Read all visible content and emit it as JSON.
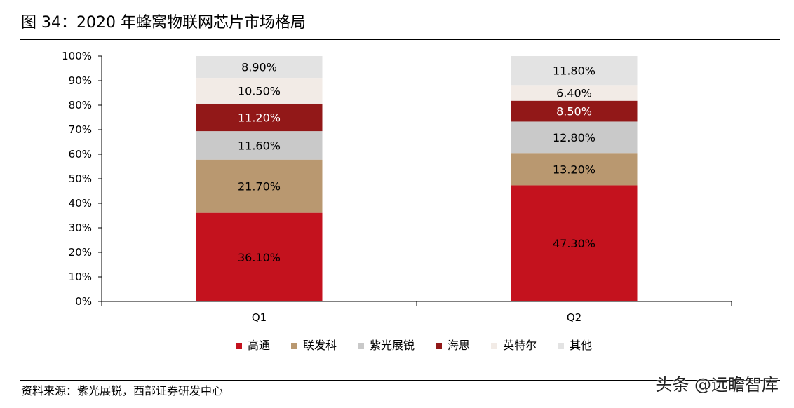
{
  "title": "图 34：2020 年蜂窝物联网芯片市场格局",
  "source": "资料来源：紫光展锐，西部证券研发中心",
  "watermark": "头条 @远瞻智库",
  "colors": {
    "高通": "#c4121e",
    "联发科": "#b99870",
    "紫光展锐": "#c9c9c9",
    "海思": "#921818",
    "英特尔": "#f2ebe6",
    "其他": "#e3e3e3"
  },
  "chart_data": {
    "type": "bar",
    "stacked": true,
    "categories": [
      "Q1",
      "Q2"
    ],
    "ylim": [
      0,
      100
    ],
    "yticks": [
      "0%",
      "10%",
      "20%",
      "30%",
      "40%",
      "50%",
      "60%",
      "70%",
      "80%",
      "90%",
      "100%"
    ],
    "grid": false,
    "legend_position": "bottom",
    "series": [
      {
        "name": "高通",
        "values": [
          36.1,
          47.3
        ],
        "labels": [
          "36.10%",
          "47.30%"
        ]
      },
      {
        "name": "联发科",
        "values": [
          21.7,
          13.2
        ],
        "labels": [
          "21.70%",
          "13.20%"
        ]
      },
      {
        "name": "紫光展锐",
        "values": [
          11.6,
          12.8
        ],
        "labels": [
          "11.60%",
          "12.80%"
        ]
      },
      {
        "name": "海思",
        "values": [
          11.2,
          8.5
        ],
        "labels": [
          "11.20%",
          "8.50%"
        ]
      },
      {
        "name": "英特尔",
        "values": [
          10.5,
          6.4
        ],
        "labels": [
          "10.50%",
          "6.40%"
        ]
      },
      {
        "name": "其他",
        "values": [
          8.9,
          11.8
        ],
        "labels": [
          "8.90%",
          "11.80%"
        ]
      }
    ]
  }
}
